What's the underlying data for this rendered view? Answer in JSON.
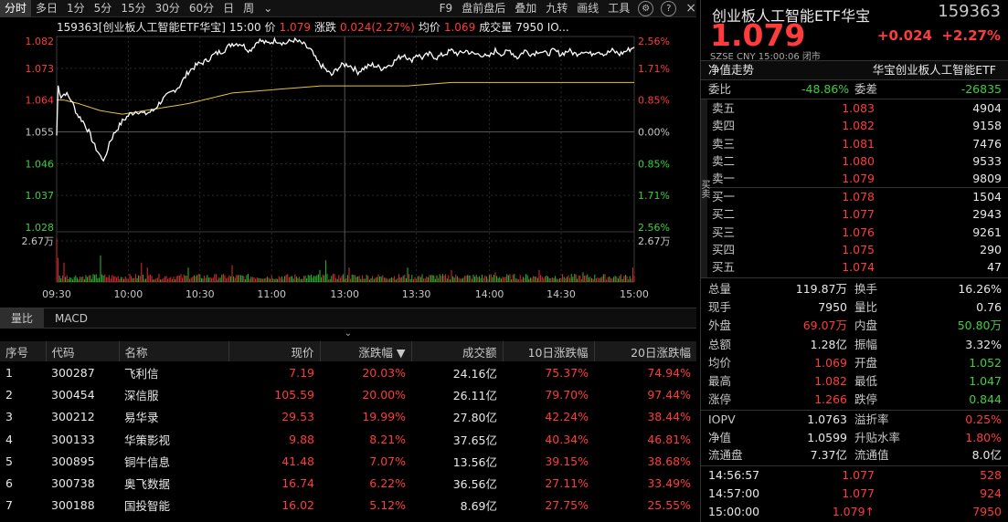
{
  "toolbar": {
    "tabs": [
      "分时",
      "多日",
      "1分",
      "5分",
      "15分",
      "30分",
      "60分",
      "日",
      "周"
    ],
    "more": "⌄",
    "right": [
      "F9",
      "盘前盘后",
      "叠加",
      "九转",
      "画线",
      "工具"
    ],
    "icon_labels": [
      "⚙",
      "?"
    ],
    "close": "×"
  },
  "info": {
    "name": "159363[创业板人工智能ETF华宝]",
    "time": "15:00",
    "price_label": "价",
    "price": "1.079",
    "change_label": "涨跌",
    "change": "0.024(2.27%)",
    "avg_label": "均价",
    "avg": "1.069",
    "vol_label": "成交量",
    "vol": "7950",
    "more": "IO..."
  },
  "chart_data": {
    "type": "line",
    "prev_close": 1.055,
    "ylim": [
      1.028,
      1.082
    ],
    "y_ticks_left": [
      "1.082",
      "1.073",
      "1.064",
      "1.055",
      "1.046",
      "1.037",
      "1.028"
    ],
    "y_ticks_right": [
      "2.56%",
      "1.71%",
      "0.85%",
      "0.00%",
      "0.85%",
      "1.71%",
      "2.56%"
    ],
    "x_ticks": [
      "09:30",
      "10:00",
      "10:30",
      "11:00",
      "13:00",
      "13:30",
      "14:00",
      "14:30",
      "15:00"
    ],
    "volume_label_left": "2.67万",
    "volume_label_right": "2.67万",
    "price_anchors": [
      [
        0,
        1.054
      ],
      [
        1,
        1.068
      ],
      [
        3,
        1.065
      ],
      [
        6,
        1.066
      ],
      [
        10,
        1.064
      ],
      [
        14,
        1.06
      ],
      [
        18,
        1.058
      ],
      [
        22,
        1.055
      ],
      [
        26,
        1.051
      ],
      [
        30,
        1.048
      ],
      [
        33,
        1.047
      ],
      [
        36,
        1.052
      ],
      [
        40,
        1.055
      ],
      [
        45,
        1.058
      ],
      [
        50,
        1.06
      ],
      [
        55,
        1.061
      ],
      [
        60,
        1.06
      ],
      [
        66,
        1.061
      ],
      [
        72,
        1.064
      ],
      [
        78,
        1.066
      ],
      [
        84,
        1.068
      ],
      [
        90,
        1.072
      ],
      [
        96,
        1.074
      ],
      [
        102,
        1.075
      ],
      [
        108,
        1.077
      ],
      [
        114,
        1.078
      ],
      [
        120,
        1.08
      ],
      [
        126,
        1.08
      ],
      [
        132,
        1.078
      ],
      [
        138,
        1.081
      ],
      [
        144,
        1.08
      ],
      [
        150,
        1.081
      ],
      [
        156,
        1.08
      ],
      [
        162,
        1.081
      ],
      [
        168,
        1.08
      ],
      [
        174,
        1.078
      ],
      [
        178,
        1.075
      ],
      [
        183,
        1.073
      ],
      [
        188,
        1.071
      ],
      [
        192,
        1.073
      ],
      [
        196,
        1.074
      ],
      [
        200,
        1.074
      ],
      [
        206,
        1.072
      ],
      [
        210,
        1.073
      ],
      [
        216,
        1.074
      ],
      [
        222,
        1.073
      ],
      [
        228,
        1.074
      ],
      [
        234,
        1.076
      ],
      [
        238,
        1.077
      ],
      [
        242,
        1.075
      ],
      [
        246,
        1.077
      ],
      [
        250,
        1.076
      ],
      [
        255,
        1.077
      ],
      [
        260,
        1.076
      ],
      [
        265,
        1.077
      ],
      [
        270,
        1.078
      ],
      [
        275,
        1.077
      ],
      [
        280,
        1.078
      ],
      [
        285,
        1.077
      ],
      [
        290,
        1.077
      ],
      [
        295,
        1.076
      ],
      [
        300,
        1.078
      ],
      [
        305,
        1.077
      ],
      [
        310,
        1.078
      ],
      [
        315,
        1.076
      ],
      [
        320,
        1.078
      ],
      [
        325,
        1.077
      ],
      [
        330,
        1.078
      ],
      [
        335,
        1.077
      ],
      [
        340,
        1.078
      ],
      [
        345,
        1.077
      ],
      [
        350,
        1.078
      ],
      [
        355,
        1.077
      ],
      [
        360,
        1.078
      ],
      [
        365,
        1.077
      ],
      [
        370,
        1.078
      ],
      [
        375,
        1.077
      ],
      [
        380,
        1.078
      ],
      [
        385,
        1.077
      ],
      [
        390,
        1.078
      ],
      [
        395,
        1.079
      ]
    ],
    "avg_anchors": [
      [
        0,
        1.064
      ],
      [
        5,
        1.064
      ],
      [
        15,
        1.063
      ],
      [
        30,
        1.061
      ],
      [
        45,
        1.06
      ],
      [
        60,
        1.061
      ],
      [
        90,
        1.063
      ],
      [
        120,
        1.066
      ],
      [
        150,
        1.067
      ],
      [
        180,
        1.068
      ],
      [
        210,
        1.068
      ],
      [
        240,
        1.068
      ],
      [
        270,
        1.069
      ],
      [
        300,
        1.069
      ],
      [
        330,
        1.069
      ],
      [
        360,
        1.069
      ],
      [
        395,
        1.069
      ]
    ],
    "volume_spikes": [
      [
        0,
        0.9
      ],
      [
        1,
        0.5
      ],
      [
        5,
        0.4
      ],
      [
        30,
        0.55
      ],
      [
        58,
        0.4
      ],
      [
        62,
        0.3
      ],
      [
        90,
        0.3
      ],
      [
        120,
        0.35
      ],
      [
        180,
        0.25
      ],
      [
        184,
        0.45
      ],
      [
        200,
        0.3
      ],
      [
        240,
        0.3
      ],
      [
        270,
        0.25
      ],
      [
        300,
        0.2
      ],
      [
        330,
        0.25
      ],
      [
        360,
        0.2
      ],
      [
        394,
        0.3
      ]
    ]
  },
  "subtabs": [
    "量比",
    "MACD"
  ],
  "collapse": "⌄",
  "table": {
    "headers": [
      "序号",
      "代码",
      "名称",
      "现价",
      "涨跌幅 ▼",
      "成交额",
      "10日涨跌幅",
      "20日涨跌幅"
    ],
    "rows": [
      [
        "1",
        "300287",
        "飞利信",
        "7.19",
        "20.03%",
        "24.16亿",
        "75.37%",
        "74.94%"
      ],
      [
        "2",
        "300454",
        "深信服",
        "105.59",
        "20.00%",
        "26.11亿",
        "79.70%",
        "97.44%"
      ],
      [
        "3",
        "300212",
        "易华录",
        "29.53",
        "19.99%",
        "27.80亿",
        "42.24%",
        "38.44%"
      ],
      [
        "4",
        "300133",
        "华策影视",
        "9.88",
        "8.21%",
        "37.65亿",
        "40.34%",
        "46.81%"
      ],
      [
        "5",
        "300895",
        "铜牛信息",
        "41.48",
        "7.07%",
        "13.56亿",
        "39.15%",
        "38.68%"
      ],
      [
        "6",
        "300738",
        "奥飞数据",
        "16.74",
        "6.22%",
        "36.56亿",
        "27.11%",
        "33.49%"
      ],
      [
        "7",
        "300188",
        "国投智能",
        "16.02",
        "5.12%",
        "8.69亿",
        "27.75%",
        "25.55%"
      ]
    ]
  },
  "quote": {
    "title": "创业板人工智能ETF华宝",
    "code": "159363",
    "price": "1.079",
    "change": "+0.024",
    "change_pct": "+2.27%",
    "meta": "SZSE  CNY  15:00:06  闭市",
    "nav_label": "净值走势",
    "nav_name": "华宝创业板人工智能ETF",
    "weibi_label": "委比",
    "weibi": "-48.86%",
    "weicha_label": "委差",
    "weicha": "-26835",
    "asks": [
      [
        "卖五",
        "1.083",
        "4904"
      ],
      [
        "卖四",
        "1.082",
        "9158"
      ],
      [
        "卖三",
        "1.081",
        "7476"
      ],
      [
        "卖二",
        "1.080",
        "9533"
      ],
      [
        "卖一",
        "1.079",
        "9809"
      ]
    ],
    "bids": [
      [
        "买一",
        "1.078",
        "1504"
      ],
      [
        "买二",
        "1.077",
        "2943"
      ],
      [
        "买三",
        "1.076",
        "9261"
      ],
      [
        "买四",
        "1.075",
        "290"
      ],
      [
        "买五",
        "1.074",
        "47"
      ]
    ],
    "stats": [
      [
        "总量",
        "119.87万",
        "换手",
        "16.26%"
      ],
      [
        "现手",
        "7950",
        "量比",
        "0.76"
      ],
      [
        "外盘",
        "69.07万",
        "内盘",
        "50.80万"
      ],
      [
        "总额",
        "1.28亿",
        "振幅",
        "3.32%"
      ],
      [
        "均价",
        "1.069",
        "开盘",
        "1.052"
      ],
      [
        "最高",
        "1.082",
        "最低",
        "1.047"
      ],
      [
        "涨停",
        "1.266",
        "跌停",
        "0.844"
      ]
    ],
    "stats2": [
      [
        "IOPV",
        "1.0763",
        "溢折率",
        "0.25%"
      ],
      [
        "净值",
        "1.0599",
        "升贴水率",
        "1.80%"
      ],
      [
        "流通盘",
        "7.37亿",
        "流通值",
        "8.0亿"
      ]
    ],
    "ticks": [
      [
        "14:56:57",
        "1.077",
        "528"
      ],
      [
        "14:57:00",
        "1.077",
        "924"
      ],
      [
        "15:00:00",
        "1.079↑",
        "7950"
      ]
    ],
    "side_tab": "买卖"
  }
}
